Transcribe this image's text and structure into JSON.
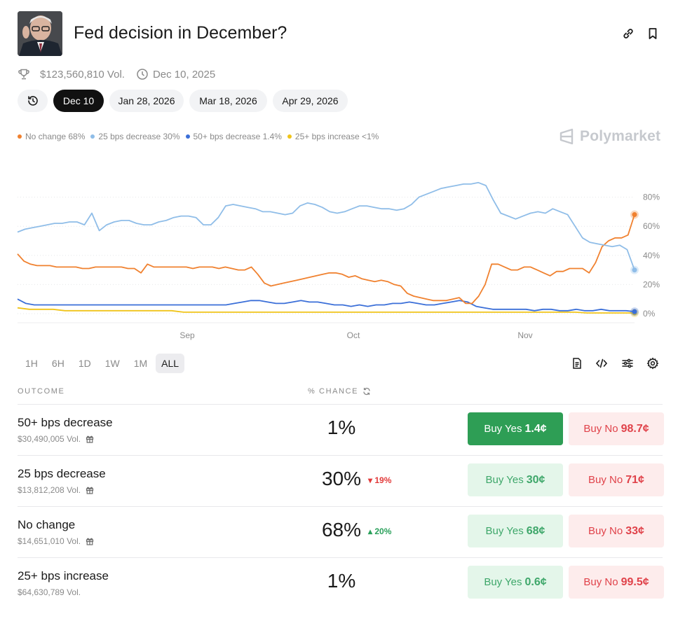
{
  "header": {
    "title": "Fed decision in December?",
    "volume": "$123,560,810 Vol.",
    "date": "Dec 10, 2025"
  },
  "tabs": [
    "Dec 10",
    "Jan 28, 2026",
    "Mar 18, 2026",
    "Apr 29, 2026"
  ],
  "legend": [
    {
      "label": "No change 68%",
      "color": "#f0812f"
    },
    {
      "label": "25 bps decrease 30%",
      "color": "#8fbde8"
    },
    {
      "label": "50+ bps decrease 1.4%",
      "color": "#3b6fd8"
    },
    {
      "label": "25+ bps increase <1%",
      "color": "#f0c419"
    }
  ],
  "brand": "Polymarket",
  "chart_data": {
    "type": "line",
    "x_ticks": [
      "Sep",
      "Oct",
      "Nov"
    ],
    "y_ticks": [
      "80%",
      "60%",
      "40%",
      "20%",
      "0%"
    ],
    "ylim": [
      0,
      100
    ],
    "series": [
      {
        "name": "25 bps decrease",
        "color": "#8fbde8",
        "values": [
          56,
          58,
          59,
          60,
          61,
          62,
          62,
          63,
          63,
          61,
          69,
          57,
          61,
          63,
          64,
          64,
          62,
          61,
          61,
          63,
          64,
          66,
          67,
          67,
          66,
          61,
          61,
          66,
          74,
          75,
          74,
          73,
          72,
          70,
          70,
          69,
          68,
          69,
          74,
          76,
          75,
          73,
          70,
          69,
          70,
          72,
          74,
          74,
          73,
          72,
          72,
          71,
          72,
          75,
          80,
          82,
          84,
          86,
          87,
          88,
          89,
          89,
          90,
          88,
          78,
          69,
          67,
          65,
          67,
          69,
          70,
          69,
          72,
          70,
          68,
          60,
          52,
          49,
          48,
          47,
          46,
          47,
          44,
          30
        ]
      },
      {
        "name": "No change",
        "color": "#f0812f",
        "values": [
          41,
          36,
          34,
          33,
          33,
          33,
          32,
          32,
          32,
          32,
          31,
          31,
          32,
          32,
          32,
          32,
          32,
          31,
          31,
          28,
          34,
          32,
          32,
          32,
          32,
          32,
          32,
          31,
          32,
          32,
          32,
          31,
          32,
          31,
          30,
          30,
          32,
          27,
          21,
          19,
          20,
          21,
          22,
          23,
          24,
          25,
          26,
          27,
          28,
          28,
          27,
          25,
          26,
          24,
          23,
          22,
          23,
          22,
          20,
          19,
          14,
          12,
          11,
          10,
          9,
          9,
          9,
          10,
          11,
          7,
          7,
          12,
          20,
          34,
          34,
          32,
          30,
          30,
          32,
          32,
          30,
          28,
          26,
          29,
          29,
          31,
          31,
          31,
          28,
          35,
          46,
          50,
          52,
          52,
          54,
          68
        ]
      },
      {
        "name": "50+ bps decrease",
        "color": "#3b6fd8",
        "values": [
          10,
          7,
          6,
          6,
          6,
          6,
          6,
          6,
          6,
          6,
          6,
          6,
          6,
          6,
          6,
          6,
          6,
          6,
          6,
          6,
          6,
          6,
          6,
          6,
          6,
          6,
          7,
          8,
          9,
          9,
          8,
          7,
          7,
          8,
          9,
          8,
          8,
          7,
          6,
          6,
          5,
          6,
          5,
          6,
          6,
          7,
          7,
          8,
          7,
          6,
          6,
          7,
          8,
          9,
          8,
          5,
          4,
          3,
          3,
          3,
          3,
          3,
          2,
          3,
          3,
          2,
          2,
          3,
          2,
          2,
          3,
          2,
          2,
          2,
          1.4
        ]
      },
      {
        "name": "25+ bps increase",
        "color": "#f0c419",
        "values": [
          4,
          3,
          3,
          3,
          2,
          2,
          2,
          2,
          2,
          2,
          2,
          2,
          2,
          2,
          1,
          1,
          1,
          1,
          1,
          1,
          1,
          1,
          1,
          1,
          1,
          1,
          1,
          1,
          1,
          1,
          1,
          1,
          1,
          1,
          1,
          1,
          1,
          1,
          1,
          1,
          1,
          1,
          1,
          1,
          1,
          1,
          1,
          1,
          0.5,
          0.5,
          0.5,
          0.5,
          0.5
        ]
      }
    ]
  },
  "ranges": [
    "1H",
    "6H",
    "1D",
    "1W",
    "1M",
    "ALL"
  ],
  "table": {
    "outcome_header": "OUTCOME",
    "chance_header": "% CHANCE",
    "rows": [
      {
        "name": "50+ bps decrease",
        "volume": "$30,490,005 Vol.",
        "chance": "1%",
        "delta": "",
        "yes_label": "Buy Yes",
        "yes_price": "1.4¢",
        "no_label": "Buy No",
        "no_price": "98.7¢"
      },
      {
        "name": "25 bps decrease",
        "volume": "$13,812,208 Vol.",
        "chance": "30%",
        "delta": "▾ 19%",
        "yes_label": "Buy Yes",
        "yes_price": "30¢",
        "no_label": "Buy No",
        "no_price": "71¢"
      },
      {
        "name": "No change",
        "volume": "$14,651,010 Vol.",
        "chance": "68%",
        "delta": "▴ 20%",
        "yes_label": "Buy Yes",
        "yes_price": "68¢",
        "no_label": "Buy No",
        "no_price": "33¢"
      },
      {
        "name": "25+ bps increase",
        "volume": "$64,630,789 Vol.",
        "chance": "1%",
        "delta": "",
        "yes_label": "Buy Yes",
        "yes_price": "0.6¢",
        "no_label": "Buy No",
        "no_price": "99.5¢"
      }
    ]
  }
}
